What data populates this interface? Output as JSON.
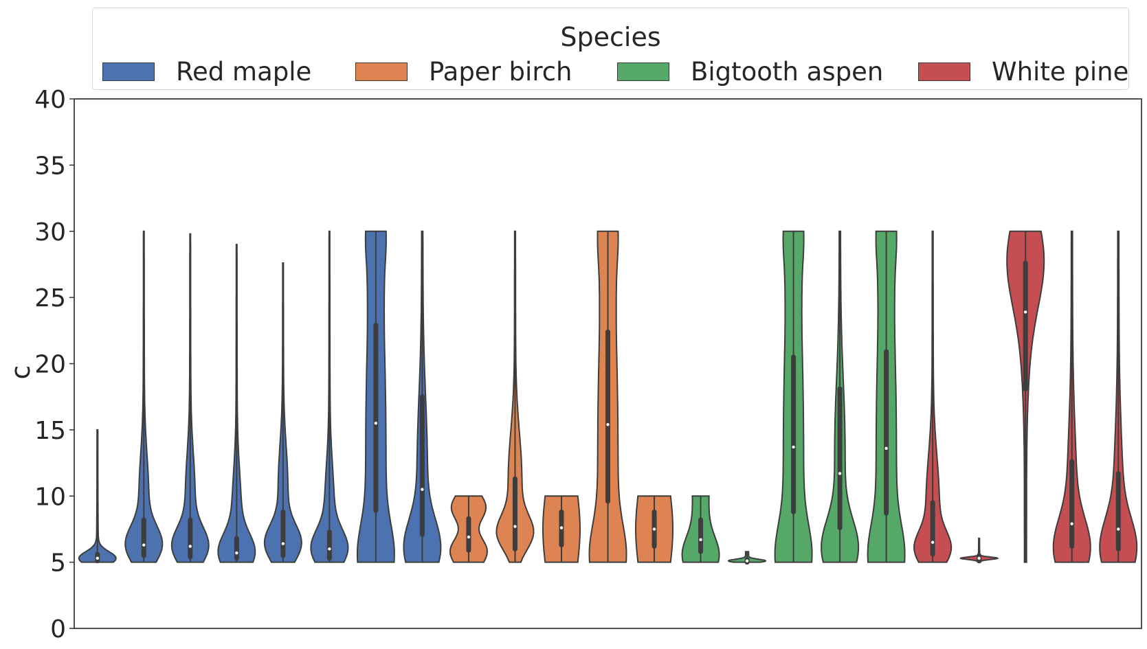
{
  "legend": {
    "title": "Species",
    "items": [
      {
        "label": "Red maple",
        "color": "#4c72b0"
      },
      {
        "label": "Paper birch",
        "color": "#dd8452"
      },
      {
        "label": "Bigtooth aspen",
        "color": "#55a868"
      },
      {
        "label": "White pine",
        "color": "#c44e52"
      }
    ]
  },
  "chart_data": {
    "type": "violin",
    "title": "",
    "xlabel": "",
    "ylabel": "c",
    "ylim": [
      0,
      40
    ],
    "yticks": [
      0,
      5,
      10,
      15,
      20,
      25,
      30,
      35,
      40
    ],
    "grid": false,
    "legend_position": "top-center, outside",
    "violins": [
      {
        "species": "Red maple",
        "min": 5,
        "max": 15,
        "q1": 5.1,
        "median": 5.3,
        "q3": 5.6,
        "shape": "spike"
      },
      {
        "species": "Red maple",
        "min": 5,
        "max": 30,
        "q1": 5.5,
        "median": 6.3,
        "q3": 8.2,
        "shape": "skew"
      },
      {
        "species": "Red maple",
        "min": 5,
        "max": 29.8,
        "q1": 5.4,
        "median": 6.2,
        "q3": 8.2,
        "shape": "skew"
      },
      {
        "species": "Red maple",
        "min": 5,
        "max": 29,
        "q1": 5.3,
        "median": 5.7,
        "q3": 6.8,
        "shape": "skew"
      },
      {
        "species": "Red maple",
        "min": 5,
        "max": 27.6,
        "q1": 5.5,
        "median": 6.4,
        "q3": 8.8,
        "shape": "skew"
      },
      {
        "species": "Red maple",
        "min": 5,
        "max": 30,
        "q1": 5.3,
        "median": 6.0,
        "q3": 7.3,
        "shape": "skew"
      },
      {
        "species": "Red maple",
        "min": 5,
        "max": 30,
        "q1": 8.9,
        "median": 15.5,
        "q3": 22.9,
        "shape": "wide"
      },
      {
        "species": "Red maple",
        "min": 5,
        "max": 30,
        "q1": 7.1,
        "median": 10.5,
        "q3": 17.5,
        "shape": "broad-base"
      },
      {
        "species": "Paper birch",
        "min": 5,
        "max": 10,
        "q1": 5.9,
        "median": 6.9,
        "q3": 8.3,
        "shape": "lumpy"
      },
      {
        "species": "Paper birch",
        "min": 5,
        "max": 30,
        "q1": 6.0,
        "median": 7.7,
        "q3": 11.3,
        "shape": "skew-mid"
      },
      {
        "species": "Paper birch",
        "min": 5,
        "max": 10,
        "q1": 6.3,
        "median": 7.6,
        "q3": 8.8,
        "shape": "box"
      },
      {
        "species": "Paper birch",
        "min": 5,
        "max": 30,
        "q1": 9.6,
        "median": 15.4,
        "q3": 22.4,
        "shape": "wide"
      },
      {
        "species": "Paper birch",
        "min": 5,
        "max": 10,
        "q1": 6.2,
        "median": 7.5,
        "q3": 8.8,
        "shape": "box"
      },
      {
        "species": "Bigtooth aspen",
        "min": 5,
        "max": 10,
        "q1": 5.8,
        "median": 6.7,
        "q3": 8.2,
        "shape": "pear"
      },
      {
        "species": "Bigtooth aspen",
        "min": 5,
        "max": 5.8,
        "q1": 5.0,
        "median": 5.1,
        "q3": 5.2,
        "shape": "flat"
      },
      {
        "species": "Bigtooth aspen",
        "min": 5,
        "max": 30,
        "q1": 8.8,
        "median": 13.7,
        "q3": 20.5,
        "shape": "wide"
      },
      {
        "species": "Bigtooth aspen",
        "min": 5,
        "max": 30,
        "q1": 7.6,
        "median": 11.7,
        "q3": 18.1,
        "shape": "broad-base"
      },
      {
        "species": "Bigtooth aspen",
        "min": 5,
        "max": 30,
        "q1": 8.7,
        "median": 13.6,
        "q3": 20.9,
        "shape": "wide"
      },
      {
        "species": "White pine",
        "min": 5,
        "max": 30,
        "q1": 5.6,
        "median": 6.5,
        "q3": 9.5,
        "shape": "skew-mid"
      },
      {
        "species": "White pine",
        "min": 5,
        "max": 6.8,
        "q1": 5.1,
        "median": 5.3,
        "q3": 5.5,
        "shape": "spike"
      },
      {
        "species": "White pine",
        "min": 5,
        "max": 30,
        "q1": 18.1,
        "median": 23.9,
        "q3": 27.6,
        "shape": "top-heavy"
      },
      {
        "species": "White pine",
        "min": 5,
        "max": 30,
        "q1": 6.2,
        "median": 7.9,
        "q3": 12.6,
        "shape": "broad-base"
      },
      {
        "species": "White pine",
        "min": 5,
        "max": 30,
        "q1": 6.0,
        "median": 7.5,
        "q3": 11.7,
        "shape": "broad-base"
      }
    ]
  }
}
